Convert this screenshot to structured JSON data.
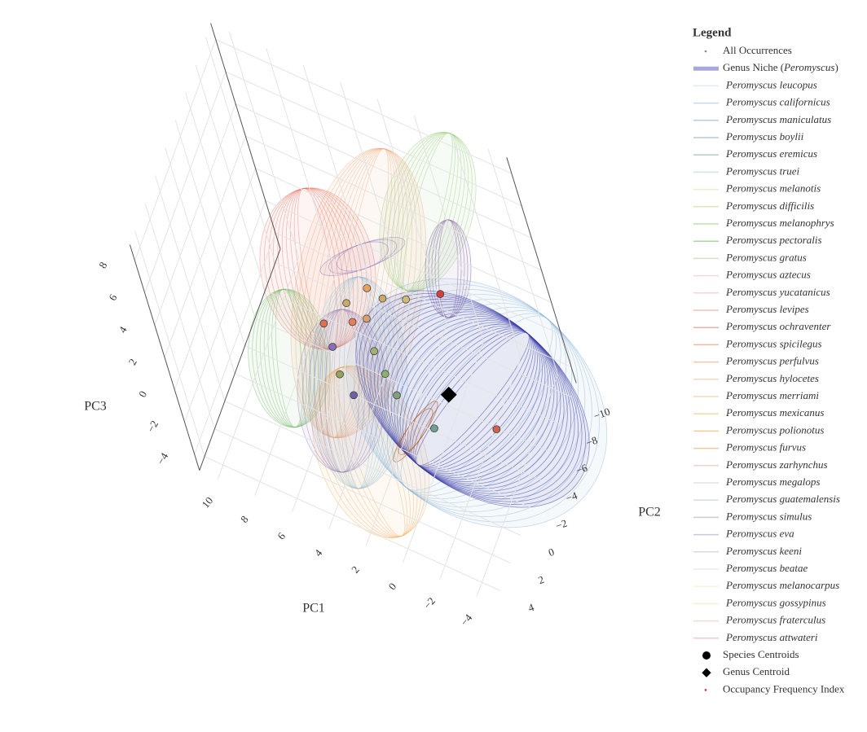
{
  "chart_data": {
    "type": "scatter3d",
    "xlabel": "PC1",
    "ylabel": "PC2",
    "zlabel": "PC3",
    "xlim": [
      -5,
      11
    ],
    "ylim": [
      -11,
      5
    ],
    "zlim": [
      -5,
      9
    ],
    "xticks": [
      {
        "value": -4,
        "label": "−4"
      },
      {
        "value": -2,
        "label": "−2"
      },
      0,
      2,
      4,
      6,
      8,
      10
    ],
    "yticks": [
      {
        "value": -10,
        "label": "−10"
      },
      {
        "value": -8,
        "label": "−8"
      },
      {
        "value": -6,
        "label": "−6"
      },
      {
        "value": -4,
        "label": "−4"
      },
      {
        "value": -2,
        "label": "−2"
      },
      0,
      2,
      4
    ],
    "zticks": [
      {
        "value": -4,
        "label": "−4"
      },
      {
        "value": -2,
        "label": "−2"
      },
      0,
      2,
      4,
      6,
      8
    ],
    "grid": true,
    "legend_title": "Legend",
    "legend_position": "right",
    "series": [
      {
        "name": "All Occurrences",
        "symbol": "dot",
        "color": "#888888"
      },
      {
        "label_parts": [
          "Genus Niche (",
          "Peromyscus",
          ")"
        ],
        "italic_part": 1,
        "symbol": "band",
        "color": "#a8a8dc"
      },
      {
        "name": "Peromyscus leucopus",
        "style": "italic",
        "symbol": "line",
        "color": "#e3e8f2"
      },
      {
        "name": "Peromyscus californicus",
        "style": "italic",
        "symbol": "line",
        "color": "#c8d7ec"
      },
      {
        "name": "Peromyscus maniculatus",
        "style": "italic",
        "symbol": "line",
        "color": "#b7cde6"
      },
      {
        "name": "Peromyscus boylii",
        "style": "italic",
        "symbol": "line",
        "color": "#b4cbd8"
      },
      {
        "name": "Peromyscus eremicus",
        "style": "italic",
        "symbol": "line",
        "color": "#b6cfc9"
      },
      {
        "name": "Peromyscus truei",
        "style": "italic",
        "symbol": "line",
        "color": "#d4e3dc"
      },
      {
        "name": "Peromyscus melanotis",
        "style": "italic",
        "symbol": "line",
        "color": "#f0ecc8"
      },
      {
        "name": "Peromyscus difficilis",
        "style": "italic",
        "symbol": "line",
        "color": "#dbe8b8"
      },
      {
        "name": "Peromyscus melanophrys",
        "style": "italic",
        "symbol": "line",
        "color": "#bfe0b0"
      },
      {
        "name": "Peromyscus pectoralis",
        "style": "italic",
        "symbol": "line",
        "color": "#a8d8a0"
      },
      {
        "name": "Peromyscus gratus",
        "style": "italic",
        "symbol": "line",
        "color": "#d8dcc8"
      },
      {
        "name": "Peromyscus aztecus",
        "style": "italic",
        "symbol": "line",
        "color": "#f0d8dc"
      },
      {
        "name": "Peromyscus yucatanicus",
        "style": "italic",
        "symbol": "line",
        "color": "#f2d4dc"
      },
      {
        "name": "Peromyscus levipes",
        "style": "italic",
        "symbol": "line",
        "color": "#f2c4c0"
      },
      {
        "name": "Peromyscus ochraventer",
        "style": "italic",
        "symbol": "line",
        "color": "#eeb0a8"
      },
      {
        "name": "Peromyscus spicilegus",
        "style": "italic",
        "symbol": "line",
        "color": "#f0b8a0"
      },
      {
        "name": "Peromyscus perfulvus",
        "style": "italic",
        "symbol": "line",
        "color": "#f4c8b0"
      },
      {
        "name": "Peromyscus hylocetes",
        "style": "italic",
        "symbol": "line",
        "color": "#f8d8c0"
      },
      {
        "name": "Peromyscus merriami",
        "style": "italic",
        "symbol": "line",
        "color": "#fad8b8"
      },
      {
        "name": "Peromyscus mexicanus",
        "style": "italic",
        "symbol": "line",
        "color": "#f8d8a0"
      },
      {
        "name": "Peromyscus polionotus",
        "style": "italic",
        "symbol": "line",
        "color": "#f6cc98"
      },
      {
        "name": "Peromyscus furvus",
        "style": "italic",
        "symbol": "line",
        "color": "#f4c8a0"
      },
      {
        "name": "Peromyscus zarhynchus",
        "style": "italic",
        "symbol": "line",
        "color": "#f0d0d0"
      },
      {
        "name": "Peromyscus megalops",
        "style": "italic",
        "symbol": "line",
        "color": "#e0e0e8"
      },
      {
        "name": "Peromyscus guatemalensis",
        "style": "italic",
        "symbol": "line",
        "color": "#d8dce8"
      },
      {
        "name": "Peromyscus simulus",
        "style": "italic",
        "symbol": "line",
        "color": "#ccccdc"
      },
      {
        "name": "Peromyscus eva",
        "style": "italic",
        "symbol": "line",
        "color": "#c8c8e0"
      },
      {
        "name": "Peromyscus keeni",
        "style": "italic",
        "symbol": "line",
        "color": "#d8d8e4"
      },
      {
        "name": "Peromyscus beatae",
        "style": "italic",
        "symbol": "line",
        "color": "#ecece4"
      },
      {
        "name": "Peromyscus melanocarpus",
        "style": "italic",
        "symbol": "line",
        "color": "#f6f6d8"
      },
      {
        "name": "Peromyscus gossypinus",
        "style": "italic",
        "symbol": "line",
        "color": "#f2f0d0"
      },
      {
        "name": "Peromyscus fraterculus",
        "style": "italic",
        "symbol": "line",
        "color": "#eedcd0"
      },
      {
        "name": "Peromyscus attwateri",
        "style": "italic",
        "symbol": "line",
        "color": "#f4c8c8"
      },
      {
        "name": "Species Centroids",
        "symbol": "circle",
        "color": "#000000",
        "x": [
          4.5,
          3.8,
          2.9,
          1.8,
          5.2,
          3.9,
          3.3,
          4.4,
          3.6,
          2.4,
          1.5,
          2.6,
          0.6,
          -1.7,
          0.3,
          -4.6
        ],
        "y": [
          -5.2,
          -6.7,
          -6.5,
          -7.1,
          -3.3,
          -4.2,
          -4.8,
          -2.1,
          -0.6,
          -3.0,
          -1.9,
          0.3,
          -0.9,
          0.1,
          -8.4,
          -1.6
        ],
        "z": [
          0,
          0,
          0,
          0,
          0,
          0,
          0,
          0,
          0,
          0,
          0,
          0,
          0,
          0,
          0,
          0
        ],
        "colors": [
          "#c9a86a",
          "#e8a060",
          "#c9a86a",
          "#cdbb7a",
          "#e07050",
          "#e08060",
          "#d9a070",
          "#8870b8",
          "#9aa060",
          "#a0b070",
          "#8bb070",
          "#7060a8",
          "#80a080",
          "#70a090",
          "#d04040",
          "#d06050"
        ]
      },
      {
        "name": "Genus Centroid",
        "symbol": "diamond",
        "color": "#000000",
        "x": [
          -1.8
        ],
        "y": [
          -2.4
        ],
        "z": [
          0
        ]
      },
      {
        "name": "Occupancy Frequency Index",
        "symbol": "dot",
        "color": "#d03030"
      }
    ]
  }
}
